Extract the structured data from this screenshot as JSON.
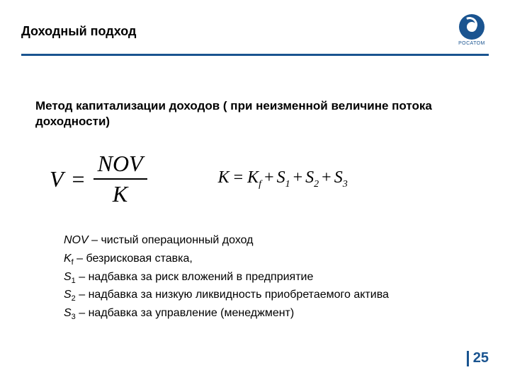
{
  "header": {
    "title": "Доходный подход",
    "logo_text": "РОСАТОМ"
  },
  "colors": {
    "accent": "#1a5490",
    "text": "#000000",
    "background": "#ffffff"
  },
  "subtitle": "Метод капитализации доходов ( при неизменной величине потока доходности)",
  "formula1": {
    "lhs": "V",
    "eq": "=",
    "numerator": "NOV",
    "denominator": "K"
  },
  "formula2": {
    "lhs": "K",
    "eq": "=",
    "t1": "K",
    "t1sub": "f",
    "plus": "+",
    "t2": "S",
    "t2sub": "1",
    "t3": "S",
    "t3sub": "2",
    "t4": "S",
    "t4sub": "3"
  },
  "definitions": [
    {
      "var": "NOV",
      "sub": "",
      "text": " – чистый операционный доход"
    },
    {
      "var": "K",
      "sub": "f",
      "text": " – безрисковая ставка,"
    },
    {
      "var": "S",
      "sub": "1",
      "text": " – надбавка за риск вложений в предприятие"
    },
    {
      "var": "S",
      "sub": "2",
      "text": " – надбавка за низкую ликвидность приобретаемого актива"
    },
    {
      "var": "S",
      "sub": "3",
      "text": " – надбавка за управление (менеджмент)"
    }
  ],
  "page_number": "25"
}
